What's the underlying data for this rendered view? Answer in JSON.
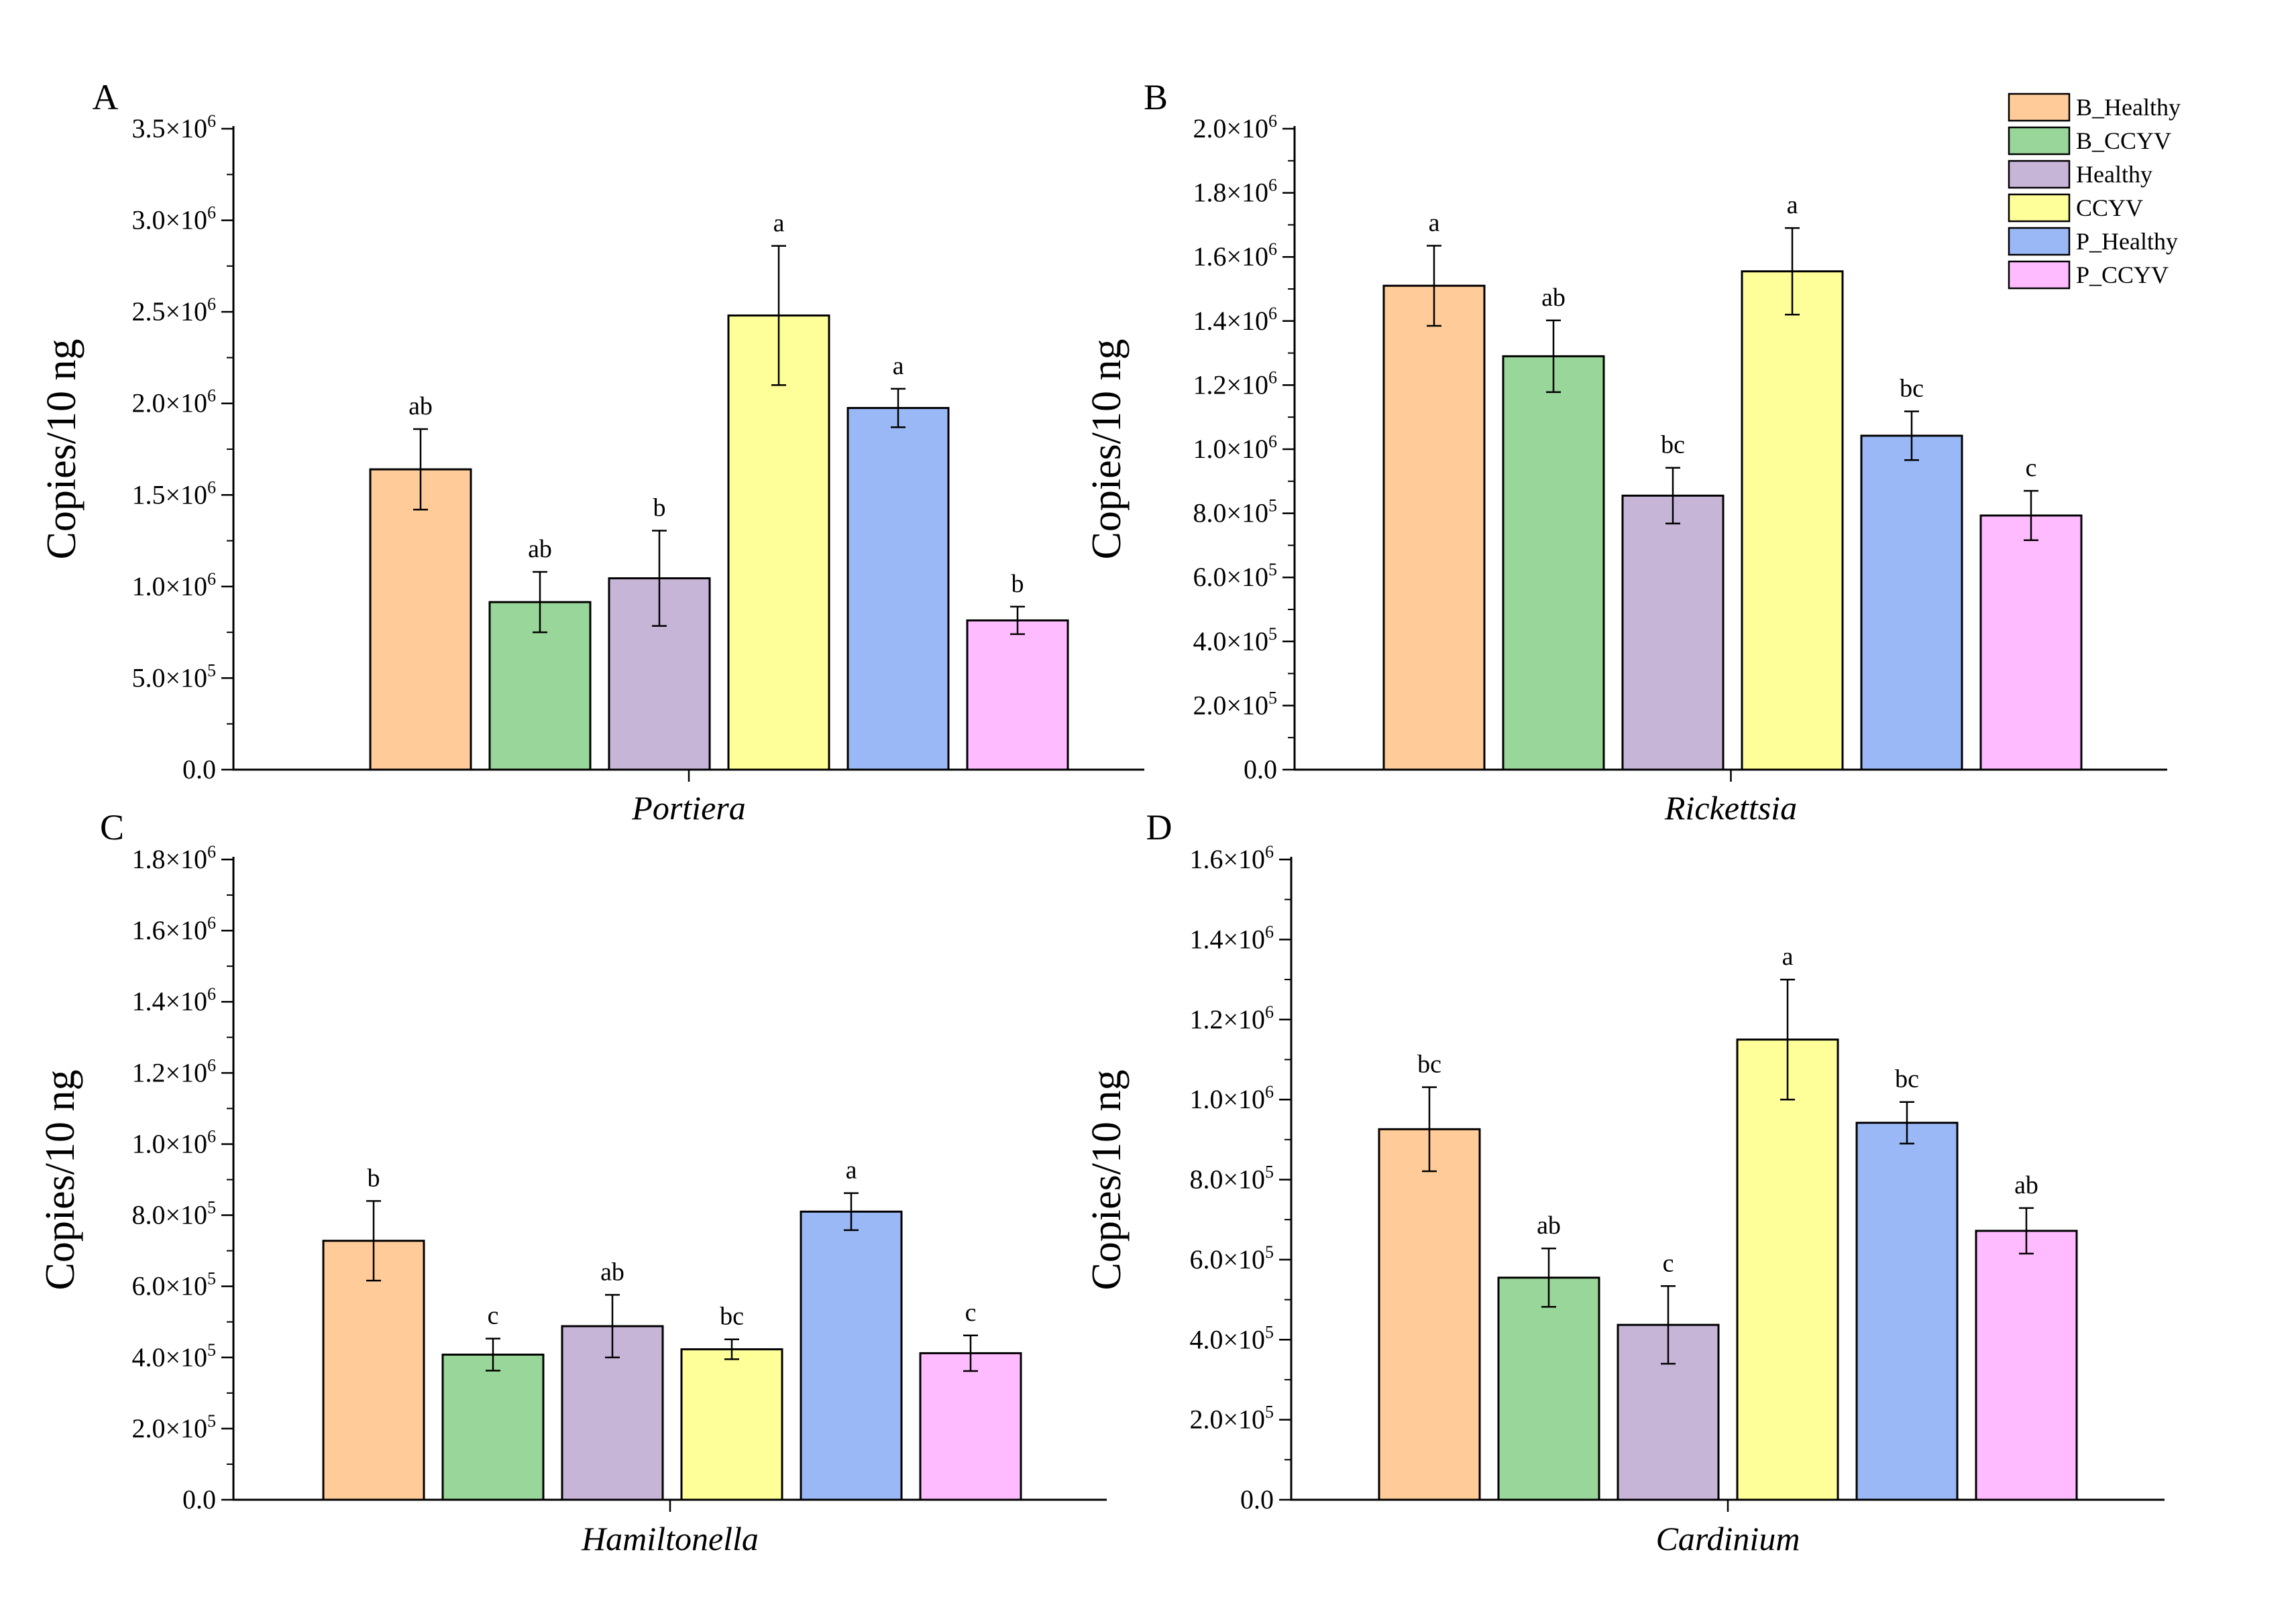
{
  "legend": [
    {
      "name": "B_Healthy",
      "color": "#FFCC99"
    },
    {
      "name": "B_CCYV",
      "color": "#99D699"
    },
    {
      "name": "Healthy",
      "color": "#C7B5D8"
    },
    {
      "name": "CCYV",
      "color": "#FFFF99"
    },
    {
      "name": "P_Healthy",
      "color": "#99B8F5"
    },
    {
      "name": "P_CCYV",
      "color": "#FFBBFF"
    }
  ],
  "chart_data": [
    {
      "type": "bar",
      "panel_label": "A",
      "xlabel": "Portiera",
      "ylabel": "Copies/10 ng",
      "ylim": [
        0,
        3500000
      ],
      "y_ticks": [
        {
          "mantissa": "0.0",
          "exp": ""
        },
        {
          "mantissa": "5.0×10",
          "exp": "5"
        },
        {
          "mantissa": "1.0×10",
          "exp": "6"
        },
        {
          "mantissa": "1.5×10",
          "exp": "6"
        },
        {
          "mantissa": "2.0×10",
          "exp": "6"
        },
        {
          "mantissa": "2.5×10",
          "exp": "6"
        },
        {
          "mantissa": "3.0×10",
          "exp": "6"
        },
        {
          "mantissa": "3.5×10",
          "exp": "6"
        }
      ],
      "tick_values": [
        0,
        500000,
        1000000,
        1500000,
        2000000,
        2500000,
        3000000,
        3500000
      ],
      "values": [
        1640000,
        915000,
        1045000,
        2480000,
        1975000,
        815000
      ],
      "errors": [
        220000,
        165000,
        260000,
        380000,
        105000,
        75000
      ],
      "sig_letters": [
        "ab",
        "ab",
        "b",
        "a",
        "a",
        "b"
      ]
    },
    {
      "type": "bar",
      "panel_label": "B",
      "xlabel": "Rickettsia",
      "ylabel": "Copies/10 ng",
      "ylim": [
        0,
        2000000
      ],
      "y_ticks": [
        {
          "mantissa": "0.0",
          "exp": ""
        },
        {
          "mantissa": "2.0×10",
          "exp": "5"
        },
        {
          "mantissa": "4.0×10",
          "exp": "5"
        },
        {
          "mantissa": "6.0×10",
          "exp": "5"
        },
        {
          "mantissa": "8.0×10",
          "exp": "5"
        },
        {
          "mantissa": "1.0×10",
          "exp": "6"
        },
        {
          "mantissa": "1.2×10",
          "exp": "6"
        },
        {
          "mantissa": "1.4×10",
          "exp": "6"
        },
        {
          "mantissa": "1.6×10",
          "exp": "6"
        },
        {
          "mantissa": "1.8×10",
          "exp": "6"
        },
        {
          "mantissa": "2.0×10",
          "exp": "6"
        }
      ],
      "tick_values": [
        0,
        200000,
        400000,
        600000,
        800000,
        1000000,
        1200000,
        1400000,
        1600000,
        1800000,
        2000000
      ],
      "values": [
        1510000,
        1290000,
        855000,
        1555000,
        1042000,
        793000
      ],
      "errors": [
        125000,
        112000,
        87000,
        135000,
        76000,
        77000
      ],
      "sig_letters": [
        "a",
        "ab",
        "bc",
        "a",
        "bc",
        "c"
      ]
    },
    {
      "type": "bar",
      "panel_label": "C",
      "xlabel": "Hamiltonella",
      "ylabel": "Copies/10 ng",
      "ylim": [
        0,
        1800000
      ],
      "y_ticks": [
        {
          "mantissa": "0.0",
          "exp": ""
        },
        {
          "mantissa": "2.0×10",
          "exp": "5"
        },
        {
          "mantissa": "4.0×10",
          "exp": "5"
        },
        {
          "mantissa": "6.0×10",
          "exp": "5"
        },
        {
          "mantissa": "8.0×10",
          "exp": "5"
        },
        {
          "mantissa": "1.0×10",
          "exp": "6"
        },
        {
          "mantissa": "1.2×10",
          "exp": "6"
        },
        {
          "mantissa": "1.4×10",
          "exp": "6"
        },
        {
          "mantissa": "1.6×10",
          "exp": "6"
        },
        {
          "mantissa": "1.8×10",
          "exp": "6"
        }
      ],
      "tick_values": [
        0,
        200000,
        400000,
        600000,
        800000,
        1000000,
        1200000,
        1400000,
        1600000,
        1800000
      ],
      "values": [
        728000,
        408000,
        488000,
        423000,
        810000,
        412000
      ],
      "errors": [
        112000,
        45000,
        88000,
        28000,
        52000,
        50000
      ],
      "sig_letters": [
        "b",
        "c",
        "ab",
        "bc",
        "a",
        "c"
      ]
    },
    {
      "type": "bar",
      "panel_label": "D",
      "xlabel": "Cardinium",
      "ylabel": "Copies/10 ng",
      "ylim": [
        0,
        1600000
      ],
      "y_ticks": [
        {
          "mantissa": "0.0",
          "exp": ""
        },
        {
          "mantissa": "2.0×10",
          "exp": "5"
        },
        {
          "mantissa": "4.0×10",
          "exp": "5"
        },
        {
          "mantissa": "6.0×10",
          "exp": "5"
        },
        {
          "mantissa": "8.0×10",
          "exp": "5"
        },
        {
          "mantissa": "1.0×10",
          "exp": "6"
        },
        {
          "mantissa": "1.2×10",
          "exp": "6"
        },
        {
          "mantissa": "1.4×10",
          "exp": "6"
        },
        {
          "mantissa": "1.6×10",
          "exp": "6"
        }
      ],
      "tick_values": [
        0,
        200000,
        400000,
        600000,
        800000,
        1000000,
        1200000,
        1400000,
        1600000
      ],
      "values": [
        926000,
        555000,
        437000,
        1150000,
        942000,
        672000
      ],
      "errors": [
        105000,
        73000,
        97000,
        150000,
        52000,
        57000
      ],
      "sig_letters": [
        "bc",
        "ab",
        "c",
        "a",
        "bc",
        "ab"
      ]
    }
  ]
}
